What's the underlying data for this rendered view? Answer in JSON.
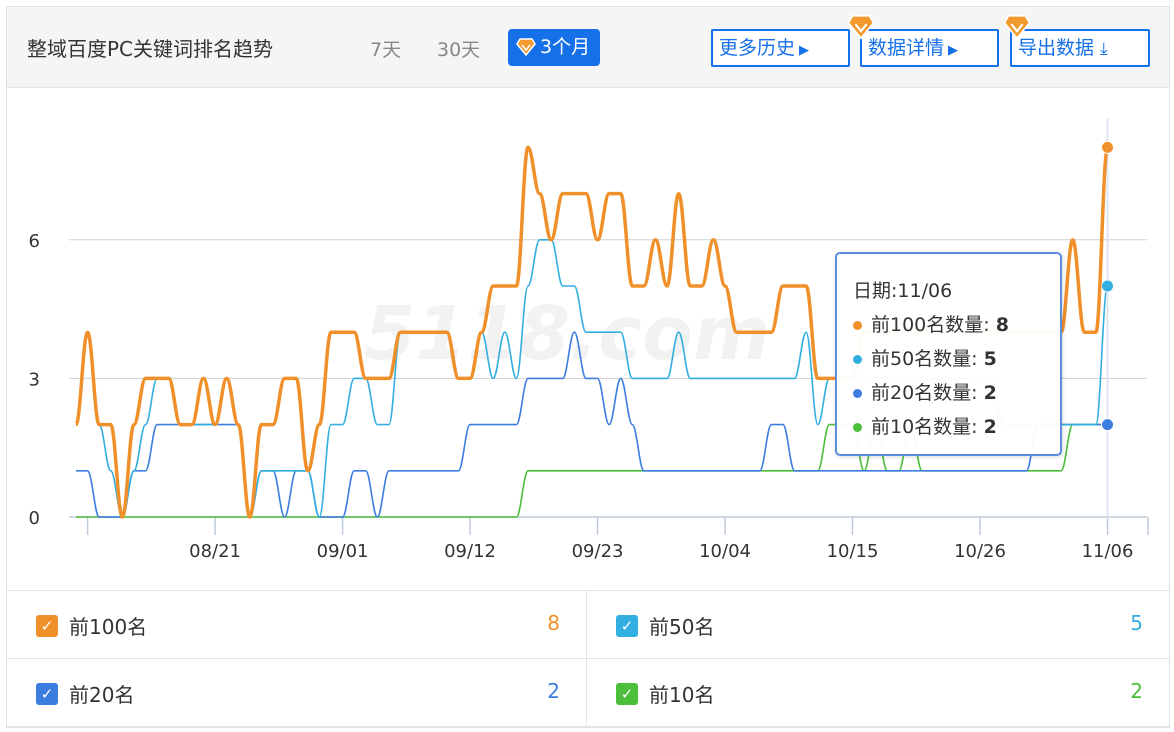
{
  "header": {
    "title": "整域百度PC关键词排名趋势",
    "ranges": [
      "7天",
      "30天",
      "3个月"
    ],
    "active_range": "3个月",
    "buttons": {
      "history": "更多历史",
      "details": "数据详情",
      "export": "导出数据"
    }
  },
  "colors": {
    "accent": "#1670e8",
    "top100": "#f0902a",
    "top50": "#33aee0",
    "top20": "#3c7de0",
    "top10": "#4cbf3a",
    "gem": "#f39a2e"
  },
  "watermark": "5118.com",
  "chart_data": {
    "type": "line",
    "smooth": true,
    "x_start": "08/09",
    "x_end": "11/06",
    "x_tick_labels": [
      "08/21",
      "09/01",
      "09/12",
      "09/23",
      "10/04",
      "10/15",
      "10/26",
      "11/06"
    ],
    "y_ticks": [
      0,
      3,
      6
    ],
    "ylim": [
      0,
      8.5
    ],
    "grid": true,
    "series": [
      {
        "name": "前100名",
        "key": "top100",
        "values": [
          2,
          4,
          2,
          2,
          0,
          2,
          3,
          3,
          3,
          2,
          2,
          3,
          2,
          3,
          2,
          0,
          2,
          2,
          3,
          3,
          1,
          2,
          4,
          4,
          4,
          3,
          3,
          3,
          4,
          4,
          4,
          4,
          4,
          3,
          3,
          4,
          5,
          5,
          5,
          8,
          7,
          6,
          7,
          7,
          7,
          6,
          7,
          7,
          5,
          5,
          6,
          5,
          7,
          5,
          5,
          6,
          5,
          4,
          4,
          4,
          4,
          5,
          5,
          5,
          3,
          3,
          3,
          3,
          4,
          4,
          4,
          4,
          4,
          4,
          4,
          4,
          4,
          4,
          4,
          4,
          4,
          4,
          4,
          4,
          4,
          4,
          6,
          4,
          4,
          8
        ]
      },
      {
        "name": "前50名",
        "key": "top50",
        "values": [
          2,
          4,
          2,
          1,
          0,
          1,
          2,
          3,
          3,
          2,
          2,
          2,
          2,
          3,
          2,
          0,
          1,
          1,
          1,
          1,
          1,
          0,
          2,
          2,
          3,
          3,
          2,
          2,
          4,
          4,
          4,
          4,
          4,
          3,
          3,
          4,
          3,
          4,
          3,
          5,
          6,
          6,
          5,
          5,
          4,
          4,
          4,
          4,
          3,
          3,
          3,
          3,
          4,
          3,
          3,
          3,
          3,
          3,
          3,
          3,
          3,
          3,
          3,
          4,
          2,
          3,
          3,
          3,
          3,
          3,
          3,
          3,
          3,
          3,
          3,
          3,
          3,
          3,
          3,
          3,
          2,
          2,
          2,
          2,
          2,
          2,
          2,
          2,
          2,
          5
        ]
      },
      {
        "name": "前20名",
        "key": "top20",
        "values": [
          1,
          1,
          0,
          0,
          0,
          1,
          1,
          2,
          2,
          2,
          2,
          2,
          2,
          2,
          2,
          0,
          1,
          1,
          0,
          1,
          1,
          0,
          0,
          0,
          1,
          1,
          0,
          1,
          1,
          1,
          1,
          1,
          1,
          1,
          2,
          2,
          2,
          2,
          2,
          3,
          3,
          3,
          3,
          4,
          3,
          3,
          2,
          3,
          2,
          1,
          1,
          1,
          1,
          1,
          1,
          1,
          1,
          1,
          1,
          1,
          2,
          2,
          1,
          1,
          1,
          1,
          1,
          1,
          1,
          1,
          1,
          1,
          1,
          1,
          1,
          1,
          1,
          1,
          1,
          1,
          1,
          1,
          1,
          2,
          2,
          2,
          2,
          2,
          2,
          2
        ]
      },
      {
        "name": "前10名",
        "key": "top10",
        "values": [
          0,
          0,
          0,
          0,
          0,
          0,
          0,
          0,
          0,
          0,
          0,
          0,
          0,
          0,
          0,
          0,
          0,
          0,
          0,
          0,
          0,
          0,
          0,
          0,
          0,
          0,
          0,
          0,
          0,
          0,
          0,
          0,
          0,
          0,
          0,
          0,
          0,
          0,
          0,
          1,
          1,
          1,
          1,
          1,
          1,
          1,
          1,
          1,
          1,
          1,
          1,
          1,
          1,
          1,
          1,
          1,
          1,
          1,
          1,
          1,
          1,
          1,
          1,
          1,
          1,
          2,
          2,
          2,
          1,
          2,
          1,
          1,
          2,
          1,
          1,
          1,
          1,
          1,
          1,
          1,
          1,
          1,
          1,
          1,
          1,
          1,
          2,
          2,
          2,
          2
        ]
      }
    ]
  },
  "tooltip": {
    "date_label": "日期:11/06",
    "rows": [
      {
        "label": "前100名数量: ",
        "value": "8"
      },
      {
        "label": "前50名数量: ",
        "value": "5"
      },
      {
        "label": "前20名数量: ",
        "value": "2"
      },
      {
        "label": "前10名数量: ",
        "value": "2"
      }
    ]
  },
  "legend": [
    {
      "label": "前100名",
      "value": "8",
      "checked": true
    },
    {
      "label": "前50名",
      "value": "5",
      "checked": true
    },
    {
      "label": "前20名",
      "value": "2",
      "checked": true
    },
    {
      "label": "前10名",
      "value": "2",
      "checked": true
    }
  ]
}
